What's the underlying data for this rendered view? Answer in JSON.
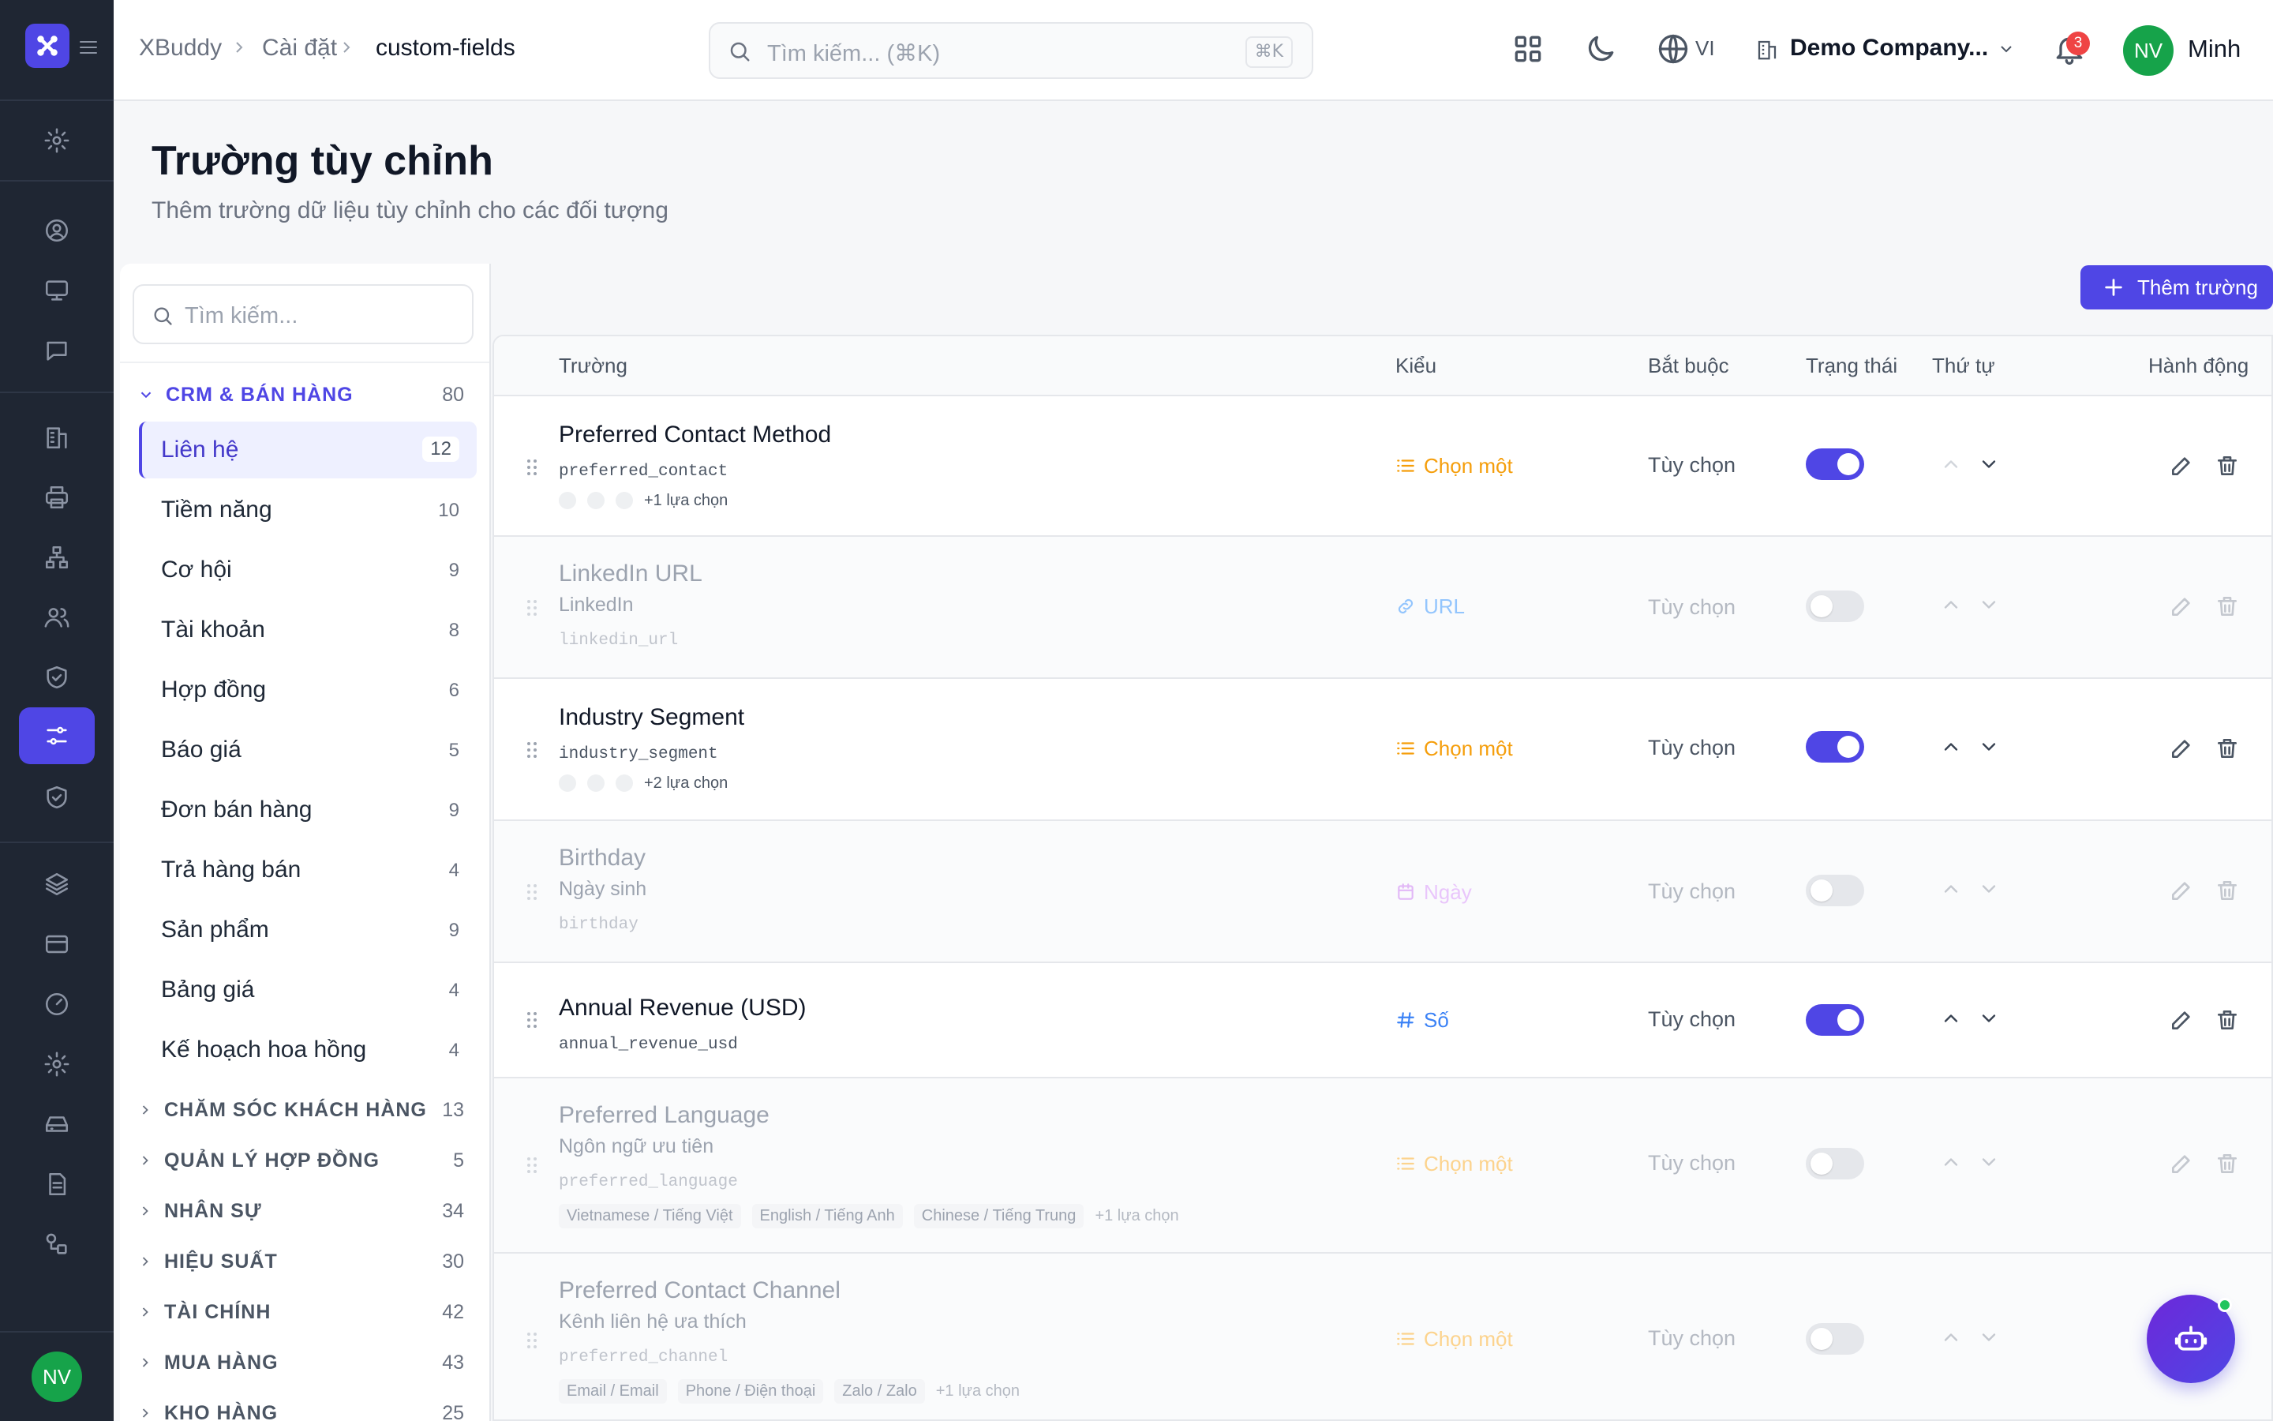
{
  "header": {
    "breadcrumb": [
      "XBuddy",
      "Cài đặt",
      "custom-fields"
    ],
    "search_placeholder": "Tìm kiếm... (⌘K)",
    "search_shortcut": "⌘K",
    "language": "VI",
    "company": "Demo Company...",
    "notification_count": "3",
    "user_initials": "NV",
    "user_name": "Minh"
  },
  "page": {
    "title": "Trường tùy chỉnh",
    "subtitle": "Thêm trường dữ liệu tùy chỉnh cho các đối tượng"
  },
  "rail": {
    "avatar_initials": "NV"
  },
  "categories": {
    "search_placeholder": "Tìm kiếm...",
    "open_group": {
      "label": "CRM & BÁN HÀNG",
      "count": "80"
    },
    "items": [
      {
        "label": "Liên hệ",
        "count": "12",
        "active": true
      },
      {
        "label": "Tiềm năng",
        "count": "10"
      },
      {
        "label": "Cơ hội",
        "count": "9"
      },
      {
        "label": "Tài khoản",
        "count": "8"
      },
      {
        "label": "Hợp đồng",
        "count": "6"
      },
      {
        "label": "Báo giá",
        "count": "5"
      },
      {
        "label": "Đơn bán hàng",
        "count": "9"
      },
      {
        "label": "Trả hàng bán",
        "count": "4"
      },
      {
        "label": "Sản phẩm",
        "count": "9"
      },
      {
        "label": "Bảng giá",
        "count": "4"
      },
      {
        "label": "Kế hoạch hoa hồng",
        "count": "4"
      }
    ],
    "groups": [
      {
        "label": "CHĂM SÓC KHÁCH HÀNG",
        "count": "13"
      },
      {
        "label": "QUẢN LÝ HỢP ĐỒNG",
        "count": "5"
      },
      {
        "label": "NHÂN SỰ",
        "count": "34"
      },
      {
        "label": "HIỆU SUẤT",
        "count": "30"
      },
      {
        "label": "TÀI CHÍNH",
        "count": "42"
      },
      {
        "label": "MUA HÀNG",
        "count": "43"
      },
      {
        "label": "KHO HÀNG",
        "count": "25"
      }
    ]
  },
  "toolbar": {
    "add_label": "Thêm trường"
  },
  "table": {
    "headers": {
      "field": "Trường",
      "type": "Kiểu",
      "required": "Bắt buộc",
      "status": "Trạng thái",
      "order": "Thứ tự",
      "actions": "Hành động"
    },
    "rows": [
      {
        "name": "Preferred Contact Method",
        "key": "preferred_contact",
        "type": "Chọn một",
        "required": "Tùy chọn",
        "active": true,
        "more": "+1 lựa chọn"
      },
      {
        "name": "LinkedIn URL",
        "label": "LinkedIn",
        "key": "linkedin_url",
        "type": "URL",
        "required": "Tùy chọn",
        "active": false
      },
      {
        "name": "Industry Segment",
        "key": "industry_segment",
        "type": "Chọn một",
        "required": "Tùy chọn",
        "active": true,
        "more": "+2 lựa chọn"
      },
      {
        "name": "Birthday",
        "label": "Ngày sinh",
        "key": "birthday",
        "type": "Ngày",
        "required": "Tùy chọn",
        "active": false
      },
      {
        "name": "Annual Revenue (USD)",
        "key": "annual_revenue_usd",
        "type": "Số",
        "required": "Tùy chọn",
        "active": true
      },
      {
        "name": "Preferred Language",
        "label": "Ngôn ngữ ưu tiên",
        "key": "preferred_language",
        "type": "Chọn một",
        "required": "Tùy chọn",
        "active": false,
        "options": [
          "Vietnamese / Tiếng Việt",
          "English / Tiếng Anh",
          "Chinese / Tiếng Trung"
        ],
        "more": "+1 lựa chọn"
      },
      {
        "name": "Preferred Contact Channel",
        "label": "Kênh liên hệ ưa thích",
        "key": "preferred_channel",
        "type": "Chọn một",
        "required": "Tùy chọn",
        "active": false,
        "options": [
          "Email / Email",
          "Phone / Điện thoại",
          "Zalo / Zalo"
        ],
        "more": "+1 lựa chọn"
      }
    ]
  },
  "colors": {
    "accent": "#4f46e5",
    "select_type": "#f59e0b",
    "url_type": "#60a5fa",
    "date_type": "#d8b4fe",
    "number_type": "#3b82f6",
    "success": "#22c55e",
    "badge": "#ef4444"
  }
}
